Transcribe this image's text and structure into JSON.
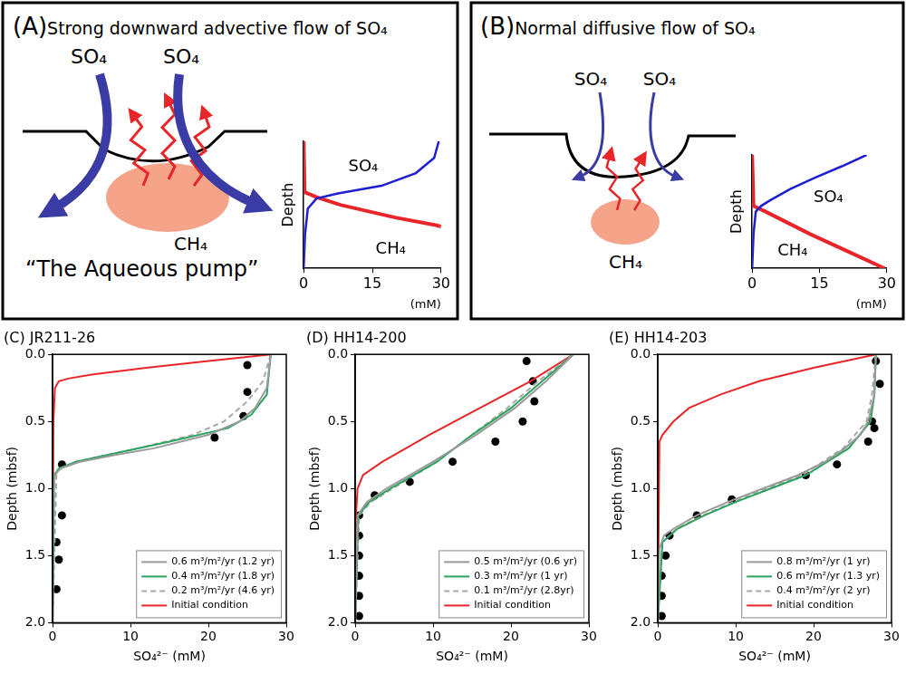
{
  "diagrams": [
    {
      "letter": "(A)",
      "title": "Strong downward advective flow of SO₄",
      "flux_label": "SO₄",
      "source_label": "CH₄",
      "caption": "“The Aqueous pump”"
    },
    {
      "letter": "(B)",
      "title": "Normal diffusive flow of SO₄",
      "flux_label": "SO₄",
      "source_label": "CH₄"
    }
  ],
  "chart_data": [
    {
      "type": "line",
      "xlabel": "(mM)",
      "ylabel": "Depth",
      "xlim": [
        0,
        30
      ],
      "xticks": [
        0,
        15,
        30
      ],
      "ylim": [
        1,
        0
      ],
      "tick_labels": "x",
      "grid": false,
      "series": [
        {
          "color": "#1f1fd0",
          "line_style": "solid",
          "x": [
            29.5,
            28.5,
            24.5,
            17,
            7.5,
            2.8,
            0.9,
            0.3,
            0
          ],
          "values": [
            0,
            0.13,
            0.25,
            0.35,
            0.41,
            0.45,
            0.53,
            0.73,
            1
          ]
        },
        {
          "color": "#e8262a",
          "line_style": "solid",
          "x": [
            0,
            0.2,
            2.8,
            8,
            14,
            20,
            28.8,
            30
          ],
          "values": [
            0,
            0.4,
            0.44,
            0.5,
            0.55,
            0.6,
            0.66,
            0.67
          ]
        }
      ],
      "annotations": [
        {
          "text": "SO₄",
          "x": 13,
          "y": 0.2
        },
        {
          "text": "CH₄",
          "x": 19,
          "y": 0.85
        }
      ]
    },
    {
      "type": "line",
      "xlabel": "(mM)",
      "ylabel": "Depth",
      "xlim": [
        0,
        30
      ],
      "xticks": [
        0,
        15,
        30
      ],
      "ylim": [
        1,
        0
      ],
      "tick_labels": "x",
      "grid": false,
      "series": [
        {
          "color": "#1f1fd0",
          "line_style": "solid",
          "x": [
            25.5,
            20,
            14,
            8.5,
            4,
            2,
            0.8,
            0.3,
            0
          ],
          "values": [
            0,
            0.1,
            0.2,
            0.3,
            0.4,
            0.45,
            0.5,
            0.7,
            1
          ]
        },
        {
          "color": "#e8262a",
          "line_style": "solid",
          "x": [
            0,
            0.3,
            3,
            8,
            13,
            18.5,
            24,
            29.5
          ],
          "values": [
            0,
            0.45,
            0.5,
            0.6,
            0.7,
            0.8,
            0.9,
            1
          ]
        }
      ],
      "annotations": [
        {
          "text": "SO₄",
          "x": 17,
          "y": 0.38
        },
        {
          "text": "CH₄",
          "x": 9,
          "y": 0.85
        }
      ]
    },
    {
      "type": "line",
      "title": "(C) JR211-26",
      "xlabel": "SO₄²⁻ (mM)",
      "ylabel": "Depth (mbsf)",
      "xlim": [
        0,
        30
      ],
      "xticks": [
        0,
        10,
        20,
        30
      ],
      "ylim": [
        2,
        0
      ],
      "yticks": [
        {
          "value": 0,
          "label": "0.0"
        },
        0.5,
        {
          "value": 1,
          "label": "1.0"
        },
        1.5,
        {
          "value": 2,
          "label": "2.0"
        }
      ],
      "grid": false,
      "legend": "lower right",
      "series": [
        {
          "name": "0.6 m³/m²/yr (1.2 yr)",
          "color": "#9a9a9a",
          "line_style": "solid",
          "x": [
            28,
            27.5,
            26,
            24,
            20,
            13,
            8,
            3.5,
            1,
            0.3,
            0.1,
            0
          ],
          "values": [
            0,
            0.25,
            0.4,
            0.5,
            0.6,
            0.7,
            0.75,
            0.8,
            0.85,
            0.9,
            1,
            2
          ]
        },
        {
          "name": "0.4 m³/m²/yr (1.8 yr)",
          "color": "#2ca25f",
          "line_style": "solid",
          "x": [
            28,
            27.5,
            25.5,
            22.5,
            15,
            7,
            3,
            0.8,
            0.2,
            0
          ],
          "values": [
            0,
            0.3,
            0.45,
            0.55,
            0.65,
            0.75,
            0.8,
            0.85,
            0.9,
            2
          ]
        },
        {
          "name": "0.2 m³/m²/yr (4.6 yr)",
          "color": "#a8a8a8",
          "line_style": "dashed",
          "x": [
            28,
            27,
            25,
            22,
            18,
            11,
            3,
            0.5,
            0
          ],
          "values": [
            0,
            0.2,
            0.35,
            0.5,
            0.6,
            0.7,
            0.8,
            0.87,
            2
          ]
        },
        {
          "name": "Initial condition",
          "color": "#e8262a",
          "line_style": "solid",
          "x": [
            28,
            20,
            12,
            5,
            2,
            0.8,
            0.3,
            0.1,
            0
          ],
          "values": [
            0,
            0.05,
            0.1,
            0.15,
            0.18,
            0.2,
            0.25,
            0.5,
            2
          ]
        },
        {
          "type": "scatter",
          "marker": "circle",
          "color": "#000000",
          "x": [
            25,
            25,
            24.5,
            20.8,
            1.2,
            1.2,
            0.5,
            0.8,
            0.5
          ],
          "values": [
            0.08,
            0.28,
            0.46,
            0.62,
            0.82,
            1.2,
            1.4,
            1.53,
            1.75
          ]
        }
      ]
    },
    {
      "type": "line",
      "title": "(D) HH14-200",
      "xlabel": "SO₄²⁻ (mM)",
      "ylabel": "Depth (mbsf)",
      "xlim": [
        0,
        30
      ],
      "xticks": [
        0,
        10,
        20,
        30
      ],
      "ylim": [
        2,
        0
      ],
      "yticks": [
        {
          "value": 0,
          "label": "0.0"
        },
        0.5,
        {
          "value": 1,
          "label": "1.0"
        },
        1.5,
        {
          "value": 2,
          "label": "2.0"
        }
      ],
      "grid": false,
      "legend": "lower right",
      "series": [
        {
          "name": "0.5 m³/m²/yr (0.6 yr)",
          "color": "#9a9a9a",
          "line_style": "solid",
          "x": [
            28,
            24.5,
            20.5,
            15.5,
            10,
            4,
            1.5,
            0.3,
            0
          ],
          "values": [
            0,
            0.2,
            0.4,
            0.6,
            0.8,
            1,
            1.1,
            1.2,
            2
          ]
        },
        {
          "name": "0.3 m³/m²/yr (1 yr)",
          "color": "#2ca25f",
          "line_style": "solid",
          "x": [
            28,
            24,
            20,
            15,
            10.5,
            4.5,
            1.8,
            0.4,
            0
          ],
          "values": [
            0,
            0.2,
            0.4,
            0.6,
            0.8,
            1,
            1.1,
            1.2,
            2
          ]
        },
        {
          "name": "0.1 m³/m²/yr (2.8yr)",
          "color": "#a8a8a8",
          "line_style": "dashed",
          "x": [
            28,
            23.5,
            19.5,
            15,
            10.5,
            4.8,
            2,
            0.5,
            0
          ],
          "values": [
            0,
            0.2,
            0.4,
            0.6,
            0.8,
            1,
            1.1,
            1.2,
            2
          ]
        },
        {
          "name": "Initial condition",
          "color": "#e8262a",
          "line_style": "solid",
          "x": [
            28,
            22.5,
            16,
            9.5,
            3.5,
            1,
            0.3,
            0.1,
            0
          ],
          "values": [
            0,
            0.2,
            0.4,
            0.6,
            0.8,
            0.9,
            1,
            1.2,
            2
          ]
        },
        {
          "type": "scatter",
          "marker": "circle",
          "color": "#000000",
          "x": [
            22,
            22.8,
            23,
            21.5,
            18,
            12.5,
            7,
            2.5,
            0.5,
            0.5,
            0.5,
            0.5,
            0.5,
            0.5
          ],
          "values": [
            0.05,
            0.2,
            0.35,
            0.5,
            0.65,
            0.8,
            0.95,
            1.05,
            1.2,
            1.35,
            1.5,
            1.65,
            1.8,
            1.95
          ]
        }
      ]
    },
    {
      "type": "line",
      "title": "(E) HH14-203",
      "xlabel": "SO₄²⁻ (mM)",
      "ylabel": "Depth (mbsf)",
      "xlim": [
        0,
        30
      ],
      "xticks": [
        0,
        10,
        20,
        30
      ],
      "ylim": [
        2,
        0
      ],
      "yticks": [
        {
          "value": 0,
          "label": "0.0"
        },
        0.5,
        {
          "value": 1,
          "label": "1.0"
        },
        1.5,
        {
          "value": 2,
          "label": "2.0"
        }
      ],
      "grid": false,
      "legend": "lower right",
      "series": [
        {
          "name": "0.8 m³/m²/yr (1 yr)",
          "color": "#9a9a9a",
          "line_style": "solid",
          "x": [
            28,
            27.8,
            27,
            26,
            24,
            21.5,
            18,
            13.5,
            9,
            5,
            2,
            0.8,
            0.2,
            0
          ],
          "values": [
            0,
            0.3,
            0.5,
            0.6,
            0.7,
            0.8,
            0.9,
            1,
            1.1,
            1.2,
            1.3,
            1.35,
            1.45,
            2
          ]
        },
        {
          "name": "0.6 m³/m²/yr (1.3 yr)",
          "color": "#2ca25f",
          "line_style": "solid",
          "x": [
            28,
            27.8,
            27.3,
            24.5,
            19,
            14.5,
            10,
            6,
            2.5,
            0.6,
            0
          ],
          "values": [
            0,
            0.3,
            0.5,
            0.7,
            0.9,
            1,
            1.1,
            1.2,
            1.3,
            1.4,
            2
          ]
        },
        {
          "name": "0.4 m³/m²/yr (2 yr)",
          "color": "#a8a8a8",
          "line_style": "dashed",
          "x": [
            28,
            27.5,
            26.8,
            23.8,
            18.5,
            14,
            9.7,
            5.8,
            2.4,
            0.6,
            0
          ],
          "values": [
            0,
            0.3,
            0.5,
            0.7,
            0.9,
            1,
            1.1,
            1.2,
            1.3,
            1.4,
            2
          ]
        },
        {
          "name": "Initial condition",
          "color": "#e8262a",
          "line_style": "solid",
          "x": [
            28,
            20,
            13,
            8,
            4,
            2,
            0.6,
            0.2,
            0
          ],
          "values": [
            0,
            0.1,
            0.2,
            0.3,
            0.4,
            0.5,
            0.6,
            0.65,
            2
          ]
        },
        {
          "type": "scatter",
          "marker": "circle",
          "color": "#000000",
          "x": [
            28,
            28.5,
            27.5,
            27.8,
            27,
            23,
            19,
            9.5,
            5,
            1.5,
            1,
            0.5,
            0.5,
            0.5
          ],
          "values": [
            0.05,
            0.22,
            0.5,
            0.55,
            0.65,
            0.82,
            0.9,
            1.08,
            1.2,
            1.35,
            1.5,
            1.65,
            1.8,
            1.95
          ]
        }
      ]
    }
  ]
}
